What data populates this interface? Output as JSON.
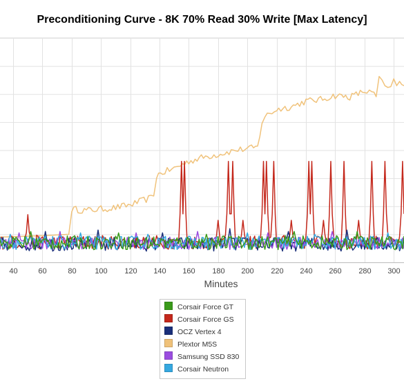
{
  "chart_data": {
    "type": "line",
    "title": "Preconditioning Curve - 8K 70% Read 30% Write [Max Latency]",
    "xlabel": "Minutes",
    "ylabel": "",
    "x_ticks": [
      40,
      60,
      80,
      100,
      120,
      140,
      160,
      180,
      200,
      220,
      240,
      260,
      280,
      300
    ],
    "x_range": [
      31,
      307
    ],
    "y_range": [
      0,
      8
    ],
    "grid": true,
    "legend_position": "bottom-center",
    "series": [
      {
        "name": "Corsair Force GT",
        "color": "#3a9a1a",
        "baseline": 0.7,
        "noise": 0.25,
        "spikes": [
          [
            52,
            1.1
          ],
          [
            112,
            1.05
          ],
          [
            172,
            1.0
          ],
          [
            232,
            1.1
          ],
          [
            275,
            1.1
          ]
        ]
      },
      {
        "name": "Corsair Force GS",
        "color": "#c4281c",
        "baseline": 0.72,
        "noise": 0.25,
        "spikes": [
          [
            50,
            1.7
          ],
          [
            155,
            3.6
          ],
          [
            157,
            3.6
          ],
          [
            180,
            1.5
          ],
          [
            187,
            3.6
          ],
          [
            190,
            3.6
          ],
          [
            197,
            1.5
          ],
          [
            211,
            3.6
          ],
          [
            213,
            3.6
          ],
          [
            218,
            3.6
          ],
          [
            230,
            1.5
          ],
          [
            242,
            3.6
          ],
          [
            244,
            3.6
          ],
          [
            252,
            1.5
          ],
          [
            257,
            3.6
          ],
          [
            266,
            3.6
          ],
          [
            276,
            1.5
          ],
          [
            285,
            3.6
          ],
          [
            294,
            3.6
          ],
          [
            306,
            3.6
          ]
        ]
      },
      {
        "name": "OCZ Vertex 4",
        "color": "#1a2f7a",
        "baseline": 0.65,
        "noise": 0.25,
        "spikes": [
          [
            62,
            1.1
          ],
          [
            98,
            1.15
          ],
          [
            142,
            1.05
          ],
          [
            188,
            1.2
          ],
          [
            228,
            1.1
          ],
          [
            268,
            1.15
          ]
        ]
      },
      {
        "name": "Plextor M5S",
        "color": "#f0c27a",
        "points": [
          [
            31,
            0.9
          ],
          [
            60,
            0.95
          ],
          [
            78,
            1.0
          ],
          [
            80,
            1.9
          ],
          [
            90,
            1.85
          ],
          [
            100,
            1.9
          ],
          [
            110,
            1.95
          ],
          [
            120,
            2.05
          ],
          [
            134,
            2.3
          ],
          [
            136,
            2.4
          ],
          [
            138,
            3.1
          ],
          [
            142,
            3.2
          ],
          [
            150,
            3.35
          ],
          [
            160,
            3.6
          ],
          [
            170,
            3.75
          ],
          [
            180,
            3.85
          ],
          [
            192,
            4.0
          ],
          [
            200,
            4.05
          ],
          [
            207,
            4.1
          ],
          [
            210,
            5.0
          ],
          [
            212,
            5.2
          ],
          [
            220,
            5.45
          ],
          [
            230,
            5.55
          ],
          [
            240,
            5.75
          ],
          [
            250,
            5.8
          ],
          [
            260,
            5.95
          ],
          [
            270,
            5.9
          ],
          [
            280,
            6.1
          ],
          [
            285,
            6.05
          ],
          [
            288,
            5.9
          ],
          [
            290,
            6.6
          ],
          [
            292,
            6.4
          ],
          [
            294,
            6.2
          ],
          [
            296,
            6.3
          ],
          [
            298,
            6.2
          ],
          [
            300,
            6.5
          ],
          [
            302,
            6.3
          ],
          [
            304,
            6.4
          ],
          [
            307,
            6.3
          ]
        ],
        "jitter": 0.12
      },
      {
        "name": "Samsung SSD 830",
        "color": "#9b4de0",
        "baseline": 0.68,
        "noise": 0.22,
        "spikes": [
          [
            44,
            1.05
          ],
          [
            72,
            1.1
          ],
          [
            124,
            1.05
          ],
          [
            166,
            1.1
          ],
          [
            214,
            1.05
          ],
          [
            258,
            1.1
          ]
        ]
      },
      {
        "name": "Corsair Neutron",
        "color": "#35a8e0",
        "baseline": 0.7,
        "noise": 0.24,
        "spikes": [
          [
            38,
            1.0
          ],
          [
            86,
            1.05
          ],
          [
            132,
            1.0
          ],
          [
            200,
            1.05
          ],
          [
            246,
            1.0
          ],
          [
            296,
            1.05
          ]
        ]
      }
    ]
  }
}
